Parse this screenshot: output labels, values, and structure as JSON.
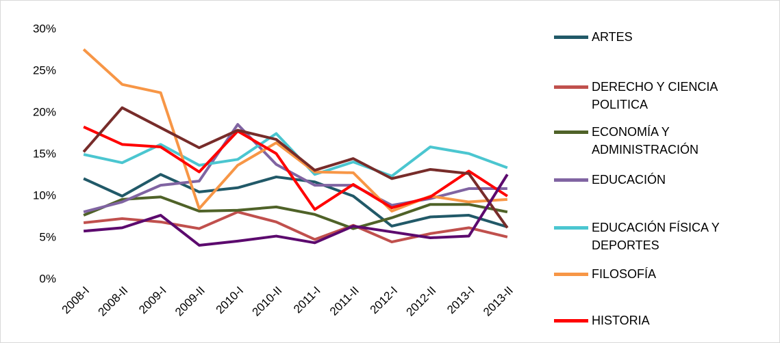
{
  "chart_data": {
    "type": "line",
    "categories": [
      "2008-I",
      "2008-II",
      "2009-I",
      "2009-II",
      "2010-I",
      "2010-II",
      "2011-I",
      "2011-II",
      "2012-I",
      "2012-II",
      "2013-I",
      "2013-II"
    ],
    "ylim": [
      0,
      30
    ],
    "yticks": [
      {
        "value": 0,
        "label": "0%"
      },
      {
        "value": 5,
        "label": "5%"
      },
      {
        "value": 10,
        "label": "10%"
      },
      {
        "value": 15,
        "label": "15%"
      },
      {
        "value": 20,
        "label": "20%"
      },
      {
        "value": 25,
        "label": "25%"
      },
      {
        "value": 30,
        "label": "30%"
      }
    ],
    "grid": false,
    "series": [
      {
        "name": "ARTES",
        "color": "#215968",
        "values": [
          12.1,
          10.0,
          12.6,
          10.5,
          11.0,
          12.3,
          11.7,
          10.0,
          6.4,
          7.5,
          7.7,
          6.3
        ]
      },
      {
        "name": "DERECHO Y CIENCIA POLITICA",
        "color": "#c0504d",
        "values": [
          6.8,
          7.3,
          6.9,
          6.1,
          8.1,
          6.9,
          4.8,
          6.5,
          4.5,
          5.5,
          6.2,
          5.1
        ]
      },
      {
        "name": "ECONOMÍA Y ADMINISTRACIÓN",
        "color": "#4f6228",
        "values": [
          7.7,
          9.6,
          9.9,
          8.2,
          8.3,
          8.7,
          7.8,
          6.1,
          7.4,
          9.0,
          9.0,
          8.1
        ]
      },
      {
        "name": "EDUCACIÓN",
        "color": "#8064a2",
        "values": [
          8.1,
          9.3,
          11.3,
          11.8,
          18.6,
          13.8,
          11.3,
          11.3,
          8.9,
          9.7,
          10.9,
          10.9
        ]
      },
      {
        "name": "EDUCACIÓN FÍSICA Y DEPORTES",
        "color": "#4bc6d0",
        "values": [
          15.0,
          14.0,
          16.2,
          13.7,
          14.4,
          17.5,
          12.6,
          14.1,
          12.4,
          15.9,
          15.1,
          13.4
        ]
      },
      {
        "name": "FILOSOFÍA",
        "color": "#f79646",
        "values": [
          27.6,
          23.4,
          22.4,
          8.5,
          13.7,
          16.4,
          12.9,
          12.8,
          8.2,
          10.0,
          9.3,
          9.6
        ]
      },
      {
        "name": "HISTORIA",
        "color": "#ff0000",
        "values": [
          18.3,
          16.2,
          15.9,
          12.9,
          17.8,
          15.1,
          8.4,
          11.4,
          8.6,
          9.9,
          13.0,
          10.0
        ]
      },
      {
        "color": "#772c2a",
        "values": [
          15.3,
          20.6,
          18.2,
          15.8,
          17.9,
          16.8,
          13.1,
          14.5,
          12.1,
          13.2,
          12.7,
          6.2
        ]
      },
      {
        "color": "#5c0a6e",
        "values": [
          5.8,
          6.2,
          7.7,
          4.1,
          4.6,
          5.2,
          4.4,
          6.4,
          5.7,
          5.0,
          5.2,
          12.6
        ]
      }
    ]
  }
}
